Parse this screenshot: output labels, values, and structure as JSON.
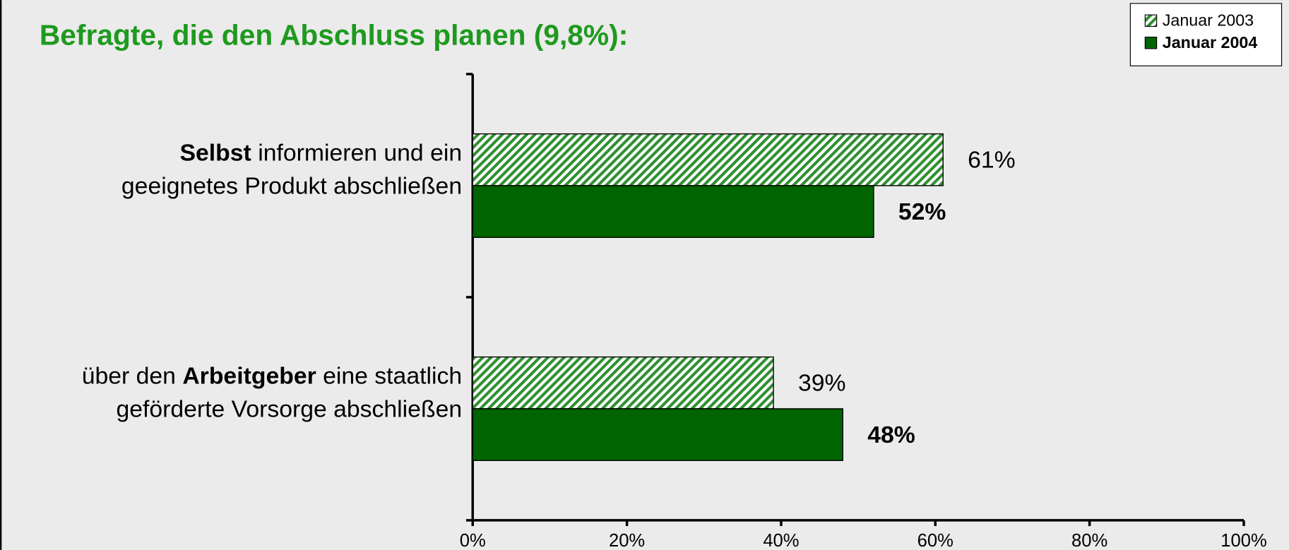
{
  "chart_data": {
    "type": "hbar",
    "title": "Befragte, die den Abschluss planen (9,8%):",
    "categories": [
      [
        [
          {
            "text": "Selbst",
            "bold": true
          },
          {
            "text": " informieren und ein",
            "bold": false
          }
        ],
        [
          {
            "text": "geeignetes Produkt abschließen",
            "bold": false
          }
        ]
      ],
      [
        [
          {
            "text": "über den ",
            "bold": false
          },
          {
            "text": "Arbeitgeber",
            "bold": true
          },
          {
            "text": " eine staatlich",
            "bold": false
          }
        ],
        [
          {
            "text": "geförderte Vorsorge abschließen",
            "bold": false
          }
        ]
      ]
    ],
    "series": [
      {
        "name": "Januar 2003",
        "color": "#2f8f2f",
        "pattern": "hatch",
        "bold": false,
        "values": [
          61,
          39
        ],
        "value_labels": [
          "61%",
          "39%"
        ]
      },
      {
        "name": "Januar 2004",
        "color": "#006400",
        "pattern": "solid",
        "bold": true,
        "values": [
          52,
          48
        ],
        "value_labels": [
          "52%",
          "48%"
        ]
      }
    ],
    "xlim": [
      0,
      100
    ],
    "xticks": [
      {
        "value": 0,
        "label": "0%"
      },
      {
        "value": 20,
        "label": "20%"
      },
      {
        "value": 40,
        "label": "40%"
      },
      {
        "value": 60,
        "label": "60%"
      },
      {
        "value": 80,
        "label": "80%"
      },
      {
        "value": 100,
        "label": "100%"
      }
    ],
    "legend": "top-right"
  }
}
